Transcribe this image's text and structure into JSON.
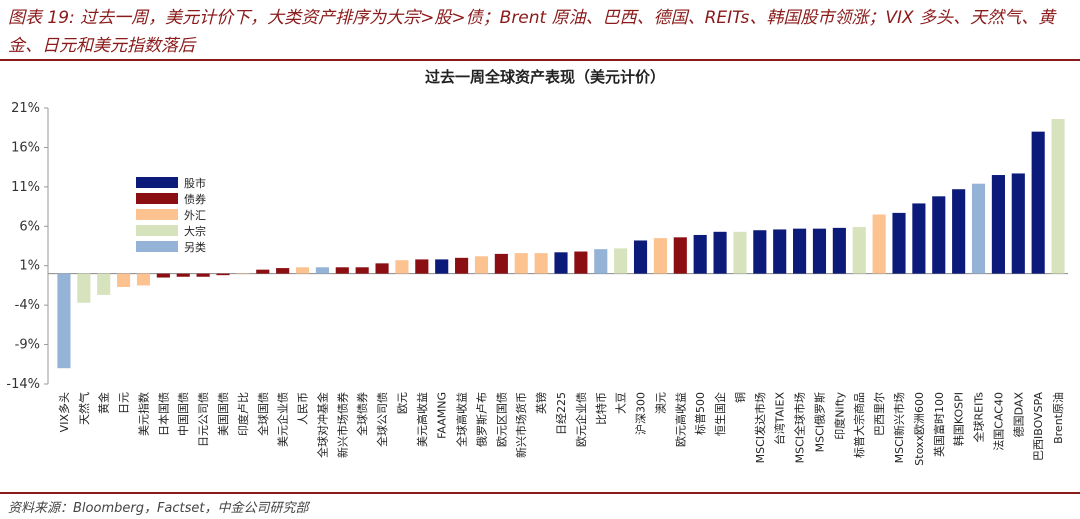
{
  "header": {
    "title": "图表 19: 过去一周，美元计价下，大类资产排序为大宗>股>债；Brent 原油、巴西、德国、REITs、韩国股市领涨；VIX 多头、天然气、黄金、日元和美元指数落后"
  },
  "footer": {
    "source": "资料来源：Bloomberg，Factset，中金公司研究部"
  },
  "colors": {
    "股市": "#0c1a7a",
    "债券": "#8b0f12",
    "外汇": "#fcc391",
    "大宗": "#d6e3bd",
    "另类": "#94b3d7"
  },
  "chart_data": {
    "type": "bar",
    "title": "过去一周全球资产表现（美元计价）",
    "ylim": [
      -14,
      22
    ],
    "yticks": [
      "-14%",
      "-9%",
      "-4%",
      "1%",
      "6%",
      "11%",
      "16%",
      "21%"
    ],
    "ytick_values": [
      -14,
      -9,
      -4,
      1,
      6,
      11,
      16,
      21
    ],
    "legend": [
      "股市",
      "债券",
      "外汇",
      "大宗",
      "另类"
    ],
    "legend_position": "top-left",
    "categories": [
      "VIX多头",
      "天然气",
      "黄金",
      "日元",
      "美元指数",
      "日本国债",
      "中国国债",
      "日元公司债",
      "美国国债",
      "印度卢比",
      "全球国债",
      "美元企业债",
      "人民币",
      "全球对冲基金",
      "新兴市场债券",
      "全球债券",
      "全球公司债",
      "欧元",
      "美元高收益",
      "FAAMNG",
      "全球高收益",
      "俄罗斯卢布",
      "欧元区国债",
      "新兴市场货币",
      "英镑",
      "日经225",
      "欧元企业债",
      "比特币",
      "大豆",
      "沪深300",
      "澳元",
      "欧元高收益",
      "标普500",
      "恒生国企",
      "铜",
      "MSCI发达市场",
      "台湾TAIEX",
      "MSCI全球市场",
      "MSCI俄罗斯",
      "印度Nifty",
      "标普大宗商品",
      "巴西里尔",
      "MSCI新兴市场",
      "Stoxx欧洲600",
      "英国富时100",
      "韩国KOSPI",
      "全球REITs",
      "法国CAC40",
      "德国DAX",
      "巴西IBOVSPA",
      "Brent原油"
    ],
    "values": [
      -12.0,
      -3.7,
      -2.7,
      -1.7,
      -1.5,
      -0.5,
      -0.4,
      -0.4,
      -0.2,
      0.0,
      0.5,
      0.7,
      0.8,
      0.8,
      0.8,
      0.8,
      1.3,
      1.7,
      1.8,
      1.8,
      2.0,
      2.2,
      2.5,
      2.6,
      2.6,
      2.7,
      2.8,
      3.1,
      3.2,
      4.2,
      4.5,
      4.6,
      4.9,
      5.3,
      5.3,
      5.5,
      5.6,
      5.7,
      5.7,
      5.8,
      5.9,
      7.5,
      7.7,
      8.9,
      9.8,
      10.7,
      11.4,
      12.5,
      12.7,
      18.0,
      19.6
    ],
    "groups": [
      "另类",
      "大宗",
      "大宗",
      "外汇",
      "外汇",
      "债券",
      "债券",
      "债券",
      "债券",
      "外汇",
      "债券",
      "债券",
      "外汇",
      "另类",
      "债券",
      "债券",
      "债券",
      "外汇",
      "债券",
      "股市",
      "债券",
      "外汇",
      "债券",
      "外汇",
      "外汇",
      "股市",
      "债券",
      "另类",
      "大宗",
      "股市",
      "外汇",
      "债券",
      "股市",
      "股市",
      "大宗",
      "股市",
      "股市",
      "股市",
      "股市",
      "股市",
      "大宗",
      "外汇",
      "股市",
      "股市",
      "股市",
      "股市",
      "另类",
      "股市",
      "股市",
      "股市",
      "大宗"
    ]
  }
}
